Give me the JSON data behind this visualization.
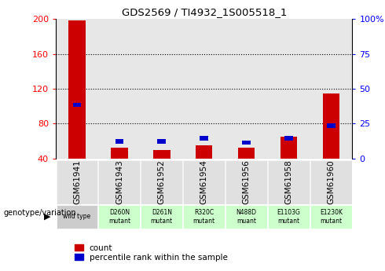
{
  "title": "GDS2569 / TI4932_1S005518_1",
  "samples": [
    "GSM61941",
    "GSM61943",
    "GSM61952",
    "GSM61954",
    "GSM61956",
    "GSM61958",
    "GSM61960"
  ],
  "genotype_labels": [
    "wild type",
    "D260N\nmutant",
    "D261N\nmutant",
    "R320C\nmutant",
    "N488D\nmuant",
    "E1103G\nmutant",
    "E1230K\nmutant"
  ],
  "counts": [
    198,
    52,
    50,
    55,
    52,
    65,
    115
  ],
  "percentile_ranks_raw": [
    40,
    14,
    14,
    16,
    13,
    16,
    25
  ],
  "ylim_left": [
    40,
    200
  ],
  "ylim_right": [
    0,
    100
  ],
  "yticks_left": [
    40,
    80,
    120,
    160,
    200
  ],
  "yticks_right": [
    0,
    25,
    50,
    75,
    100
  ],
  "ytick_labels_left": [
    "40",
    "80",
    "120",
    "160",
    "200"
  ],
  "ytick_labels_right": [
    "0",
    "25",
    "50",
    "75",
    "100%"
  ],
  "bar_width": 0.4,
  "blue_bar_width": 0.2,
  "count_color": "#cc0000",
  "percentile_color": "#0000cc",
  "bg_color_gsm": "#bbbbbb",
  "bg_color_geno_light": "#ccffcc",
  "bg_color_geno_wt": "#cccccc",
  "legend_count_label": "count",
  "legend_pct_label": "percentile rank within the sample",
  "genotype_variation_label": "genotype/variation"
}
